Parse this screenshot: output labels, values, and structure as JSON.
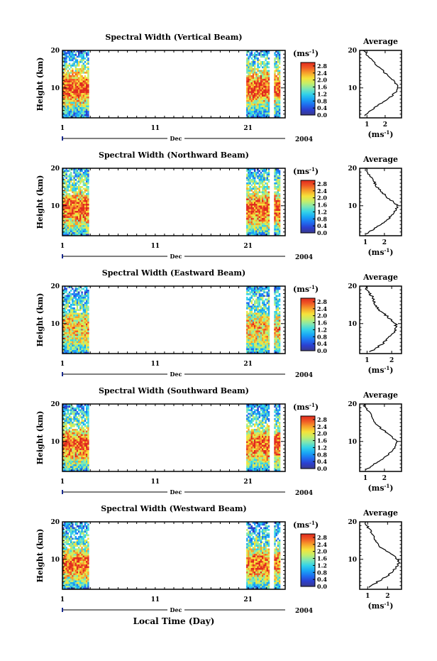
{
  "figure": {
    "x_axis_title": "Local Time (Day)",
    "month_label": "Dec",
    "year_label": "2004",
    "avg_xlabel_main": "(ms",
    "avg_xlabel_sup": "-1",
    "avg_xlabel_close": ")",
    "cb_unit_main": "(ms",
    "cb_unit_sup": "-1",
    "cb_unit_close": ")",
    "ylabel": "Height (km)",
    "avg_title": "Average",
    "colorbar_ticks": [
      "0.0",
      "0.4",
      "0.8",
      "1.2",
      "1.6",
      "2.0",
      "2.4",
      "2.8"
    ],
    "colorbar_tick_values": [
      0.0,
      0.4,
      0.8,
      1.2,
      1.6,
      2.0,
      2.4,
      2.8
    ],
    "colors": [
      "#3a3a8c",
      "#2b3fd0",
      "#1f6ff0",
      "#19a6f5",
      "#34d3e8",
      "#7de6b4",
      "#c4ee6a",
      "#f6e23a",
      "#f7a22b",
      "#f05a25",
      "#e02a1e"
    ]
  },
  "chart_data": [
    {
      "type": "heatmap",
      "title": "Spectral Width (Vertical Beam)",
      "ylabel": "Height (km)",
      "ylim": [
        2,
        20
      ],
      "yticks": [
        10,
        20
      ],
      "xlim": [
        1,
        25
      ],
      "xticks": [
        1,
        11,
        21
      ],
      "data_blocks": [
        [
          1,
          3.7
        ],
        [
          20.8,
          23.3
        ],
        [
          23.8,
          24.4
        ]
      ],
      "colorbar": {
        "min": 0.0,
        "max": 3.0
      },
      "average": {
        "xlim": [
          0.6,
          2.9
        ],
        "xticks": [
          1,
          2
        ],
        "profile": [
          [
            2.5,
            0.9
          ],
          [
            3,
            1.0
          ],
          [
            4,
            1.2
          ],
          [
            5,
            1.5
          ],
          [
            6,
            1.8
          ],
          [
            7,
            2.1
          ],
          [
            8,
            2.4
          ],
          [
            9,
            2.6
          ],
          [
            10,
            2.7
          ],
          [
            11,
            2.6
          ],
          [
            12,
            2.45
          ],
          [
            13,
            2.2
          ],
          [
            14,
            2.0
          ],
          [
            15,
            1.8
          ],
          [
            16,
            1.55
          ],
          [
            17,
            1.35
          ],
          [
            18,
            1.15
          ],
          [
            19,
            0.95
          ],
          [
            20,
            0.85
          ]
        ]
      }
    },
    {
      "type": "heatmap",
      "title": "Spectral Width (Northward Beam)",
      "ylabel": "Height (km)",
      "ylim": [
        2,
        20
      ],
      "yticks": [
        10,
        20
      ],
      "xlim": [
        1,
        25
      ],
      "xticks": [
        1,
        11,
        21
      ],
      "data_blocks": [
        [
          1,
          3.7
        ],
        [
          20.8,
          23.3
        ],
        [
          23.8,
          24.4
        ]
      ],
      "colorbar": {
        "min": 0.0,
        "max": 3.0
      },
      "average": {
        "xlim": [
          0.7,
          2.9
        ],
        "xticks": [
          1,
          2
        ],
        "profile": [
          [
            2.5,
            1.0
          ],
          [
            3,
            1.2
          ],
          [
            4,
            1.5
          ],
          [
            5,
            1.8
          ],
          [
            6,
            2.1
          ],
          [
            7,
            2.3
          ],
          [
            8,
            2.5
          ],
          [
            9,
            2.6
          ],
          [
            10,
            2.7
          ],
          [
            11,
            2.5
          ],
          [
            12,
            2.2
          ],
          [
            13,
            2.0
          ],
          [
            14,
            1.8
          ],
          [
            15,
            1.6
          ],
          [
            16,
            1.5
          ],
          [
            17,
            1.4
          ],
          [
            18,
            1.25
          ],
          [
            19,
            1.1
          ],
          [
            20,
            1.0
          ]
        ]
      }
    },
    {
      "type": "heatmap",
      "title": "Spectral Width (Eastward Beam)",
      "ylabel": "Height (km)",
      "ylim": [
        2,
        20
      ],
      "yticks": [
        10,
        20
      ],
      "xlim": [
        1,
        25
      ],
      "xticks": [
        1,
        11,
        21
      ],
      "data_blocks": [
        [
          1,
          3.7
        ],
        [
          20.8,
          23.3
        ],
        [
          23.8,
          24.4
        ]
      ],
      "colorbar": {
        "min": 0.0,
        "max": 3.0
      },
      "average": {
        "xlim": [
          0.7,
          2.4
        ],
        "xticks": [
          1,
          2
        ],
        "profile": [
          [
            2.5,
            1.1
          ],
          [
            3,
            1.3
          ],
          [
            4,
            1.5
          ],
          [
            5,
            1.7
          ],
          [
            6,
            1.85
          ],
          [
            7,
            2.0
          ],
          [
            8,
            2.1
          ],
          [
            9,
            2.2
          ],
          [
            10,
            2.15
          ],
          [
            11,
            2.0
          ],
          [
            12,
            1.8
          ],
          [
            13,
            1.6
          ],
          [
            14,
            1.45
          ],
          [
            15,
            1.35
          ],
          [
            16,
            1.3
          ],
          [
            17,
            1.25
          ],
          [
            18,
            1.1
          ],
          [
            19,
            1.0
          ],
          [
            20,
            0.95
          ]
        ]
      }
    },
    {
      "type": "heatmap",
      "title": "Spectral Width (Southward Beam)",
      "ylabel": "Height (km)",
      "ylim": [
        2,
        20
      ],
      "yticks": [
        10,
        20
      ],
      "xlim": [
        1,
        25
      ],
      "xticks": [
        1,
        11,
        21
      ],
      "data_blocks": [
        [
          1,
          3.7
        ],
        [
          20.8,
          23.3
        ],
        [
          23.8,
          24.4
        ]
      ],
      "colorbar": {
        "min": 0.0,
        "max": 3.0
      },
      "average": {
        "xlim": [
          0.7,
          2.9
        ],
        "xticks": [
          1,
          2
        ],
        "profile": [
          [
            2.5,
            1.0
          ],
          [
            3,
            1.2
          ],
          [
            4,
            1.5
          ],
          [
            5,
            1.8
          ],
          [
            6,
            2.1
          ],
          [
            7,
            2.3
          ],
          [
            8,
            2.5
          ],
          [
            9,
            2.6
          ],
          [
            10,
            2.65
          ],
          [
            11,
            2.45
          ],
          [
            12,
            2.2
          ],
          [
            13,
            1.95
          ],
          [
            14,
            1.7
          ],
          [
            15,
            1.5
          ],
          [
            16,
            1.4
          ],
          [
            17,
            1.3
          ],
          [
            18,
            1.15
          ],
          [
            19,
            1.0
          ],
          [
            20,
            0.9
          ]
        ]
      }
    },
    {
      "type": "heatmap",
      "title": "Spectral Width (Westward Beam)",
      "ylabel": "Height (km)",
      "ylim": [
        2,
        20
      ],
      "yticks": [
        10,
        20
      ],
      "xlim": [
        1,
        25
      ],
      "xticks": [
        1,
        11,
        21
      ],
      "data_blocks": [
        [
          1,
          3.7
        ],
        [
          20.8,
          23.3
        ],
        [
          23.8,
          24.4
        ]
      ],
      "colorbar": {
        "min": 0.0,
        "max": 3.0
      },
      "average": {
        "xlim": [
          0.6,
          2.7
        ],
        "xticks": [
          1,
          2
        ],
        "profile": [
          [
            2.5,
            1.0
          ],
          [
            3,
            1.2
          ],
          [
            4,
            1.5
          ],
          [
            5,
            1.8
          ],
          [
            6,
            2.1
          ],
          [
            7,
            2.3
          ],
          [
            8,
            2.45
          ],
          [
            9,
            2.55
          ],
          [
            10,
            2.5
          ],
          [
            11,
            2.3
          ],
          [
            12,
            2.0
          ],
          [
            13,
            1.7
          ],
          [
            14,
            1.5
          ],
          [
            15,
            1.4
          ],
          [
            16,
            1.3
          ],
          [
            17,
            1.2
          ],
          [
            18,
            1.1
          ],
          [
            19,
            0.95
          ],
          [
            20,
            0.85
          ]
        ]
      }
    }
  ]
}
